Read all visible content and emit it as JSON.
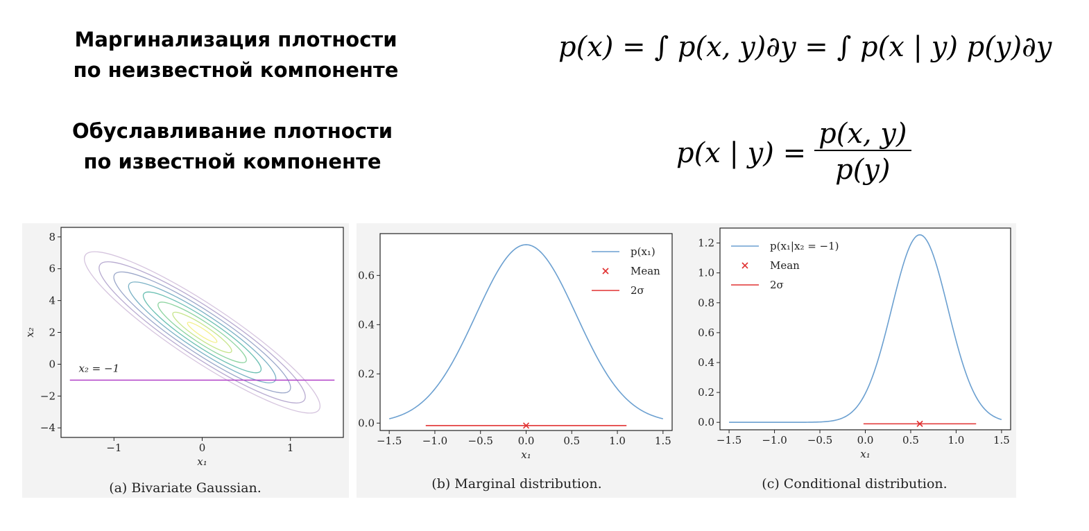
{
  "headings": {
    "marginalization": [
      "Маргинализация плотности",
      "по неизвестной компоненте"
    ],
    "conditioning": [
      "Обуславливание плотности",
      "по известной компоненте"
    ]
  },
  "formulas": {
    "marginal": "p(x) = ∫ p(x, y)∂y = ∫ p(x | y) p(y)∂y",
    "conditional_lhs": "p(x | y) =",
    "conditional_numerator": "p(x, y)",
    "conditional_denominator": "p(y)"
  },
  "chart_data": [
    {
      "type": "contour",
      "caption": "(a) Bivariate Gaussian.",
      "xlabel": "x₁",
      "ylabel": "x₂",
      "xlim": [
        -1.6,
        1.6
      ],
      "ylim": [
        -4.6,
        8.6
      ],
      "xticks": [
        -1,
        0,
        1
      ],
      "yticks": [
        -4,
        -2,
        0,
        2,
        4,
        6,
        8
      ],
      "mean": [
        0,
        2
      ],
      "levels": 8,
      "colors": [
        "#d5c4de",
        "#b7aad0",
        "#9aa6c9",
        "#7ab1c5",
        "#6cc0b3",
        "#8dd4a0",
        "#c7e58c",
        "#f4f08a"
      ],
      "line": {
        "y": -1,
        "x": [
          -1.5,
          1.5
        ],
        "label": "x₂ = −1",
        "color": "#b040c8"
      }
    },
    {
      "type": "line",
      "caption": "(b) Marginal distribution.",
      "xlabel": "x₁",
      "xlim": [
        -1.6,
        1.6
      ],
      "ylim": [
        -0.03,
        0.77
      ],
      "xticks": [
        -1.5,
        -1.0,
        -0.5,
        0.0,
        0.5,
        1.0,
        1.5
      ],
      "yticks": [
        0.0,
        0.2,
        0.4,
        0.6
      ],
      "series": [
        {
          "name": "p(x₁)",
          "color": "#6a9fd0",
          "mean": 0.0,
          "sd": 0.55,
          "peak": 0.725,
          "x": [
            -1.5,
            1.5
          ]
        }
      ],
      "mean_marker": {
        "label": "Mean",
        "x": 0.0,
        "y": -0.01,
        "color": "#e03030"
      },
      "two_sigma": {
        "label": "2σ",
        "x": [
          -1.1,
          1.1
        ],
        "y": -0.01,
        "color": "#e03030"
      },
      "legend": "top-right"
    },
    {
      "type": "line",
      "caption": "(c) Conditional distribution.",
      "xlabel": "x₁",
      "xlim": [
        -1.6,
        1.6
      ],
      "ylim": [
        -0.05,
        1.3
      ],
      "xticks": [
        -1.5,
        -1.0,
        -0.5,
        0.0,
        0.5,
        1.0,
        1.5
      ],
      "yticks": [
        0.0,
        0.2,
        0.4,
        0.6,
        0.8,
        1.0,
        1.2
      ],
      "series": [
        {
          "name": "p(x₁|x₂ = −1)",
          "color": "#6a9fd0",
          "mean": 0.6,
          "sd": 0.31,
          "peak": 1.255,
          "x": [
            -1.5,
            1.5
          ]
        }
      ],
      "mean_marker": {
        "label": "Mean",
        "x": 0.6,
        "y": -0.01,
        "color": "#e03030"
      },
      "two_sigma": {
        "label": "2σ",
        "x": [
          -0.02,
          1.22
        ],
        "y": -0.01,
        "color": "#e03030"
      },
      "legend": "top-left"
    }
  ]
}
